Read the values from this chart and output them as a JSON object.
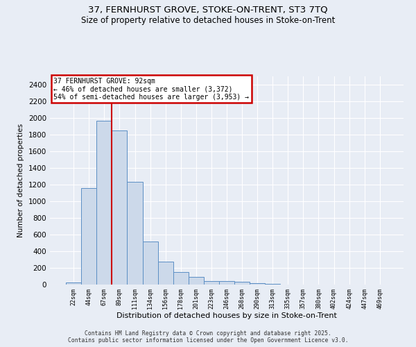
{
  "title1": "37, FERNHURST GROVE, STOKE-ON-TRENT, ST3 7TQ",
  "title2": "Size of property relative to detached houses in Stoke-on-Trent",
  "xlabel": "Distribution of detached houses by size in Stoke-on-Trent",
  "ylabel": "Number of detached properties",
  "annotation_line1": "37 FERNHURST GROVE: 92sqm",
  "annotation_line2": "← 46% of detached houses are smaller (3,372)",
  "annotation_line3": "54% of semi-detached houses are larger (3,953) →",
  "footer1": "Contains HM Land Registry data © Crown copyright and database right 2025.",
  "footer2": "Contains public sector information licensed under the Open Government Licence v3.0.",
  "categories": [
    "22sqm",
    "44sqm",
    "67sqm",
    "89sqm",
    "111sqm",
    "134sqm",
    "156sqm",
    "178sqm",
    "201sqm",
    "223sqm",
    "246sqm",
    "268sqm",
    "290sqm",
    "313sqm",
    "335sqm",
    "357sqm",
    "380sqm",
    "402sqm",
    "424sqm",
    "447sqm",
    "469sqm"
  ],
  "values": [
    25,
    1160,
    1970,
    1850,
    1230,
    520,
    275,
    150,
    90,
    45,
    40,
    35,
    15,
    8,
    4,
    3,
    2,
    2,
    1,
    1,
    2
  ],
  "bar_color": "#ccd9ea",
  "bar_edge_color": "#5b8ec4",
  "vline_x_index": 2.5,
  "vline_color": "#cc0000",
  "ylim": [
    0,
    2500
  ],
  "yticks": [
    0,
    200,
    400,
    600,
    800,
    1000,
    1200,
    1400,
    1600,
    1800,
    2000,
    2200,
    2400
  ],
  "background_color": "#e8edf5",
  "grid_color": "#ffffff",
  "annotation_box_facecolor": "#ffffff",
  "annotation_box_edgecolor": "#cc0000"
}
